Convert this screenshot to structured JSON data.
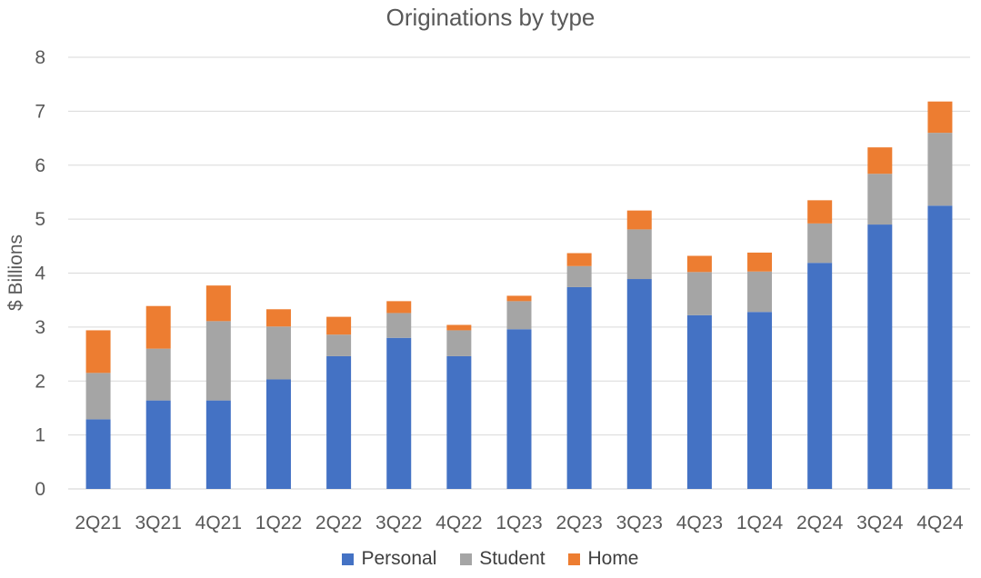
{
  "chart_data": {
    "type": "bar",
    "stacked": true,
    "title": "Originations by type",
    "xlabel": "",
    "ylabel": "$ Billions",
    "ylim": [
      0,
      8
    ],
    "yticks": [
      "0",
      "1",
      "2",
      "3",
      "4",
      "5",
      "6",
      "7",
      "8"
    ],
    "grid": true,
    "legend_position": "bottom",
    "categories": [
      "2Q21",
      "3Q21",
      "4Q21",
      "1Q22",
      "2Q22",
      "3Q22",
      "4Q22",
      "1Q23",
      "2Q23",
      "3Q23",
      "4Q23",
      "1Q24",
      "2Q24",
      "3Q24",
      "4Q24"
    ],
    "series": [
      {
        "name": "Personal",
        "color": "#4472C4",
        "values": [
          1.29,
          1.64,
          1.64,
          2.03,
          2.46,
          2.8,
          2.46,
          2.96,
          3.74,
          3.89,
          3.22,
          3.28,
          4.19,
          4.9,
          5.25
        ]
      },
      {
        "name": "Student",
        "color": "#A5A5A5",
        "values": [
          0.86,
          0.96,
          1.47,
          0.98,
          0.4,
          0.46,
          0.48,
          0.52,
          0.39,
          0.92,
          0.8,
          0.75,
          0.73,
          0.94,
          1.35
        ]
      },
      {
        "name": "Home",
        "color": "#ED7D31",
        "values": [
          0.79,
          0.79,
          0.66,
          0.32,
          0.33,
          0.22,
          0.1,
          0.1,
          0.24,
          0.35,
          0.3,
          0.35,
          0.43,
          0.49,
          0.58
        ]
      }
    ]
  }
}
